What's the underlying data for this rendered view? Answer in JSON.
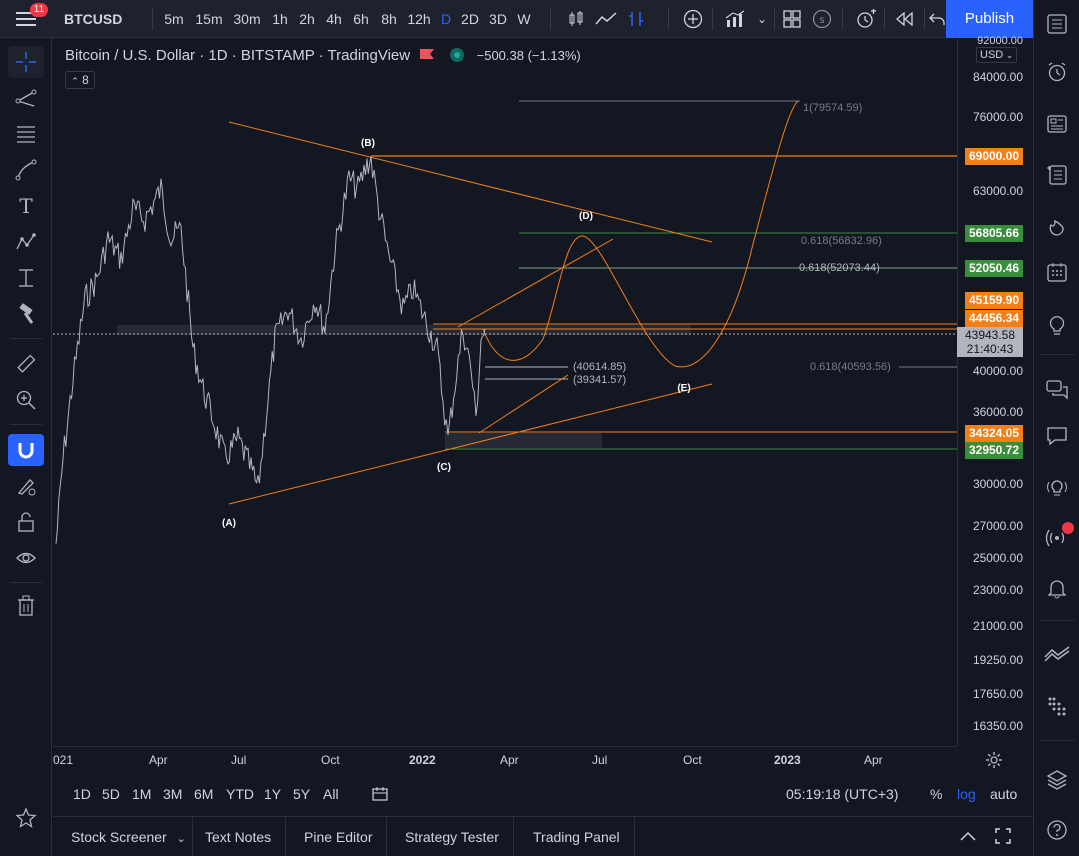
{
  "toolbar": {
    "symbol": "BTCUSD",
    "intervals": [
      "5m",
      "15m",
      "30m",
      "1h",
      "2h",
      "4h",
      "6h",
      "8h",
      "12h",
      "D",
      "2D",
      "3D",
      "W"
    ],
    "active_interval": "D",
    "publish_label": "Publish",
    "notification_count": "11",
    "icons": [
      "candles-icon",
      "line-style-icon",
      "indicators-icon",
      "add-icon",
      "templates-icon",
      "layout-icon",
      "currency-icon",
      "alert-icon",
      "replay-icon",
      "undo-icon"
    ]
  },
  "legend": {
    "title": "Bitcoin / U.S. Dollar · 1D · BITSTAMP · TradingView",
    "change": "−500.38 (−1.13%)",
    "indicator_count": "8"
  },
  "price_axis": {
    "currency": "USD",
    "top_label": "92000.00",
    "labels": [
      {
        "value": "84000.00",
        "y": 78
      },
      {
        "value": "76000.00",
        "y": 118
      },
      {
        "value": "63000.00",
        "y": 192
      },
      {
        "value": "40000.00",
        "y": 372
      },
      {
        "value": "36000.00",
        "y": 413
      },
      {
        "value": "30000.00",
        "y": 485
      },
      {
        "value": "27000.00",
        "y": 527
      },
      {
        "value": "25000.00",
        "y": 559
      },
      {
        "value": "23000.00",
        "y": 591
      },
      {
        "value": "21000.00",
        "y": 627
      },
      {
        "value": "19250.00",
        "y": 661
      },
      {
        "value": "17650.00",
        "y": 695
      },
      {
        "value": "16350.00",
        "y": 727
      }
    ],
    "tags": [
      {
        "value": "69000.00",
        "color": "#f57f17"
      },
      {
        "value": "56805.66",
        "color": "#388e3c"
      },
      {
        "value": "52050.46",
        "color": "#388e3c"
      },
      {
        "value": "45159.90",
        "color": "#f57f17"
      },
      {
        "value": "44456.34",
        "color": "#f57f17"
      },
      {
        "value": "34324.05",
        "color": "#f57f17"
      },
      {
        "value": "32950.72",
        "color": "#388e3c"
      }
    ],
    "last_price": "43943.58",
    "countdown": "21:40:43"
  },
  "time_axis": {
    "labels": [
      "021",
      "Apr",
      "Jul",
      "Oct",
      "2022",
      "Apr",
      "Jul",
      "Oct",
      "2023",
      "Apr"
    ]
  },
  "annotations": {
    "waves": [
      "(A)",
      "(B)",
      "(C)",
      "(D)",
      "(E)"
    ],
    "fib_labels": [
      "1(79574.59)",
      "0.618(56832.96)",
      "0.618(52073.44)",
      "(40614.85)",
      "(39341.57)",
      "0.618(40593.56)"
    ]
  },
  "range_bar": {
    "ranges": [
      "1D",
      "5D",
      "1M",
      "3M",
      "6M",
      "YTD",
      "1Y",
      "5Y",
      "All"
    ],
    "clock": "05:19:18 (UTC+3)",
    "percent": "%",
    "log": "log",
    "auto": "auto"
  },
  "panel": {
    "tabs": [
      "Stock Screener",
      "Text Notes",
      "Pine Editor",
      "Strategy Tester",
      "Trading Panel"
    ]
  },
  "colors": {
    "background": "#131722",
    "accent": "#2962ff",
    "orange": "#f57f17",
    "green": "#388e3c",
    "price_line": "#b2b5be"
  }
}
